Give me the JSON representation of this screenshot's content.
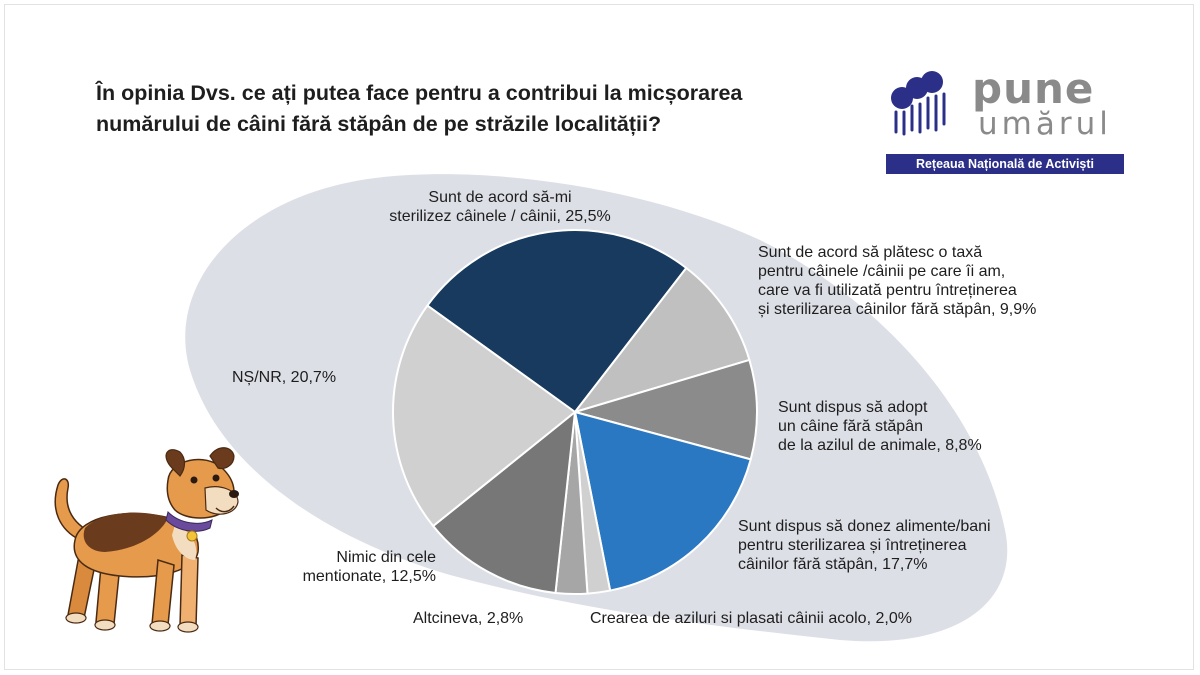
{
  "title_lines": [
    "În opinia Dvs. ce ați putea face pentru a contribui la micșorarea",
    "numărului de câini fără stăpân de pe străzile localității?"
  ],
  "logo": {
    "word1": "pune",
    "word2": "umărul",
    "tagline": "Rețeaua Națională de Activiști",
    "band_color": "#2b2f88",
    "text_color": "#8a8a8a"
  },
  "colors": {
    "blob": "#dddfe7"
  },
  "chart_data": {
    "type": "pie",
    "unit": "%",
    "slices": [
      {
        "label_lines": [
          "Sunt de acord să-mi",
          "sterilizez câinele / câinii, 25,5%"
        ],
        "value": 25.5,
        "color": "#173a5e"
      },
      {
        "label_lines": [
          "Sunt de acord să plătesc o taxă",
          "pentru câinele /câinii pe care îi am,",
          "care va fi utilizată pentru întreținerea",
          "și sterilizarea câinilor fără stăpân, 9,9%"
        ],
        "value": 9.9,
        "color": "#c0c0c0"
      },
      {
        "label_lines": [
          "Sunt dispus să adopt",
          "un câine fără stăpân",
          "de la azilul de animale, 8,8%"
        ],
        "value": 8.8,
        "color": "#8b8b8b"
      },
      {
        "label_lines": [
          "Sunt dispus să donez alimente/bani",
          "pentru sterilizarea și întreținerea",
          "câinilor fără stăpân, 17,7%"
        ],
        "value": 17.7,
        "color": "#2a78c2"
      },
      {
        "label_lines": [
          "Crearea de aziluri si plasati câinii acolo, 2,0%"
        ],
        "value": 2.0,
        "color": "#d0d0d0"
      },
      {
        "label_lines": [
          "Altcineva, 2,8%"
        ],
        "value": 2.8,
        "color": "#a6a6a6"
      },
      {
        "label_lines": [
          "Nimic din cele",
          "mentionate, 12,5%"
        ],
        "value": 12.5,
        "color": "#777777"
      },
      {
        "label_lines": [
          "NȘ/NR, 20,7%"
        ],
        "value": 20.7,
        "color": "#d0d0d0"
      }
    ]
  }
}
